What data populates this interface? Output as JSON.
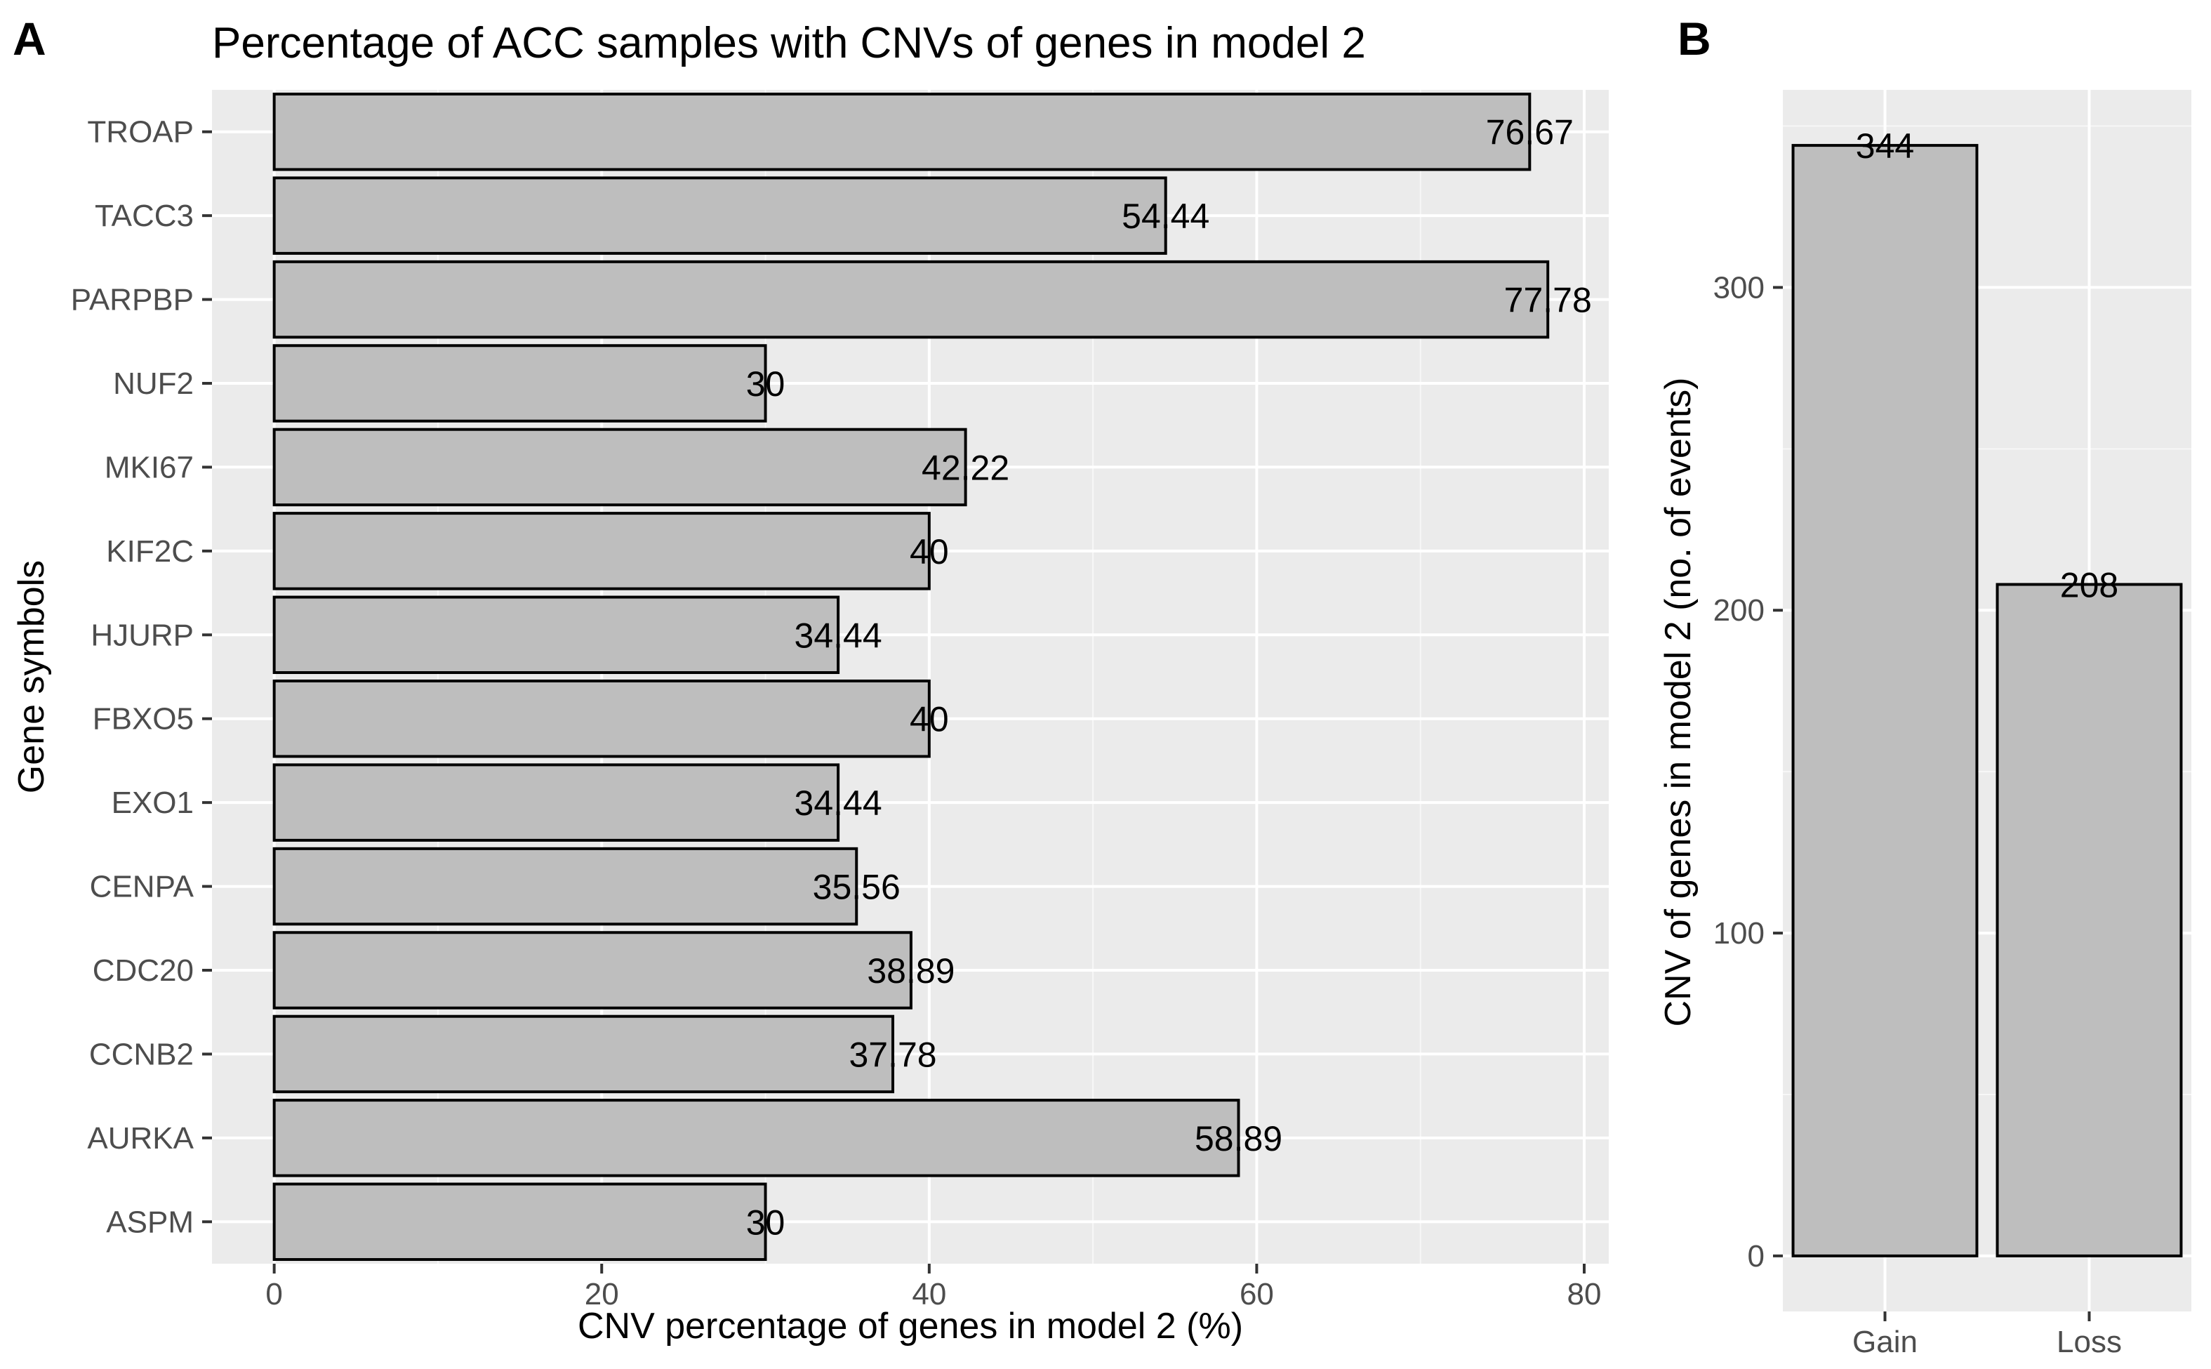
{
  "chart_data": [
    {
      "panel": "A",
      "type": "bar",
      "orientation": "horizontal",
      "title": "Percentage of ACC samples with CNVs of genes in model 2",
      "xlabel": "CNV percentage of genes in model 2 (%)",
      "ylabel": "Gene symbols",
      "xlim": [
        -3.8,
        81.5
      ],
      "xticks": [
        0,
        20,
        40,
        60,
        80
      ],
      "categories": [
        "TROAP",
        "TACC3",
        "PARPBP",
        "NUF2",
        "MKI67",
        "KIF2C",
        "HJURP",
        "FBXO5",
        "EXO1",
        "CENPA",
        "CDC20",
        "CCNB2",
        "AURKA",
        "ASPM"
      ],
      "values": [
        76.67,
        54.44,
        77.78,
        30,
        42.22,
        40,
        34.44,
        40,
        34.44,
        35.56,
        38.89,
        37.78,
        58.89,
        30
      ],
      "labels": [
        "76.67",
        "54.44",
        "77.78",
        "30",
        "42.22",
        "40",
        "34.44",
        "40",
        "34.44",
        "35.56",
        "38.89",
        "37.78",
        "58.89",
        "30"
      ],
      "grid": true
    },
    {
      "panel": "B",
      "type": "bar",
      "title": "",
      "xlabel": "",
      "ylabel": "CNV of genes in model 2 (no. of events)",
      "ylim": [
        -17.2,
        361.2
      ],
      "yticks": [
        0,
        100,
        200,
        300
      ],
      "categories": [
        "Gain",
        "Loss"
      ],
      "values": [
        344,
        208
      ],
      "labels": [
        "344",
        "208"
      ],
      "grid": true
    }
  ]
}
